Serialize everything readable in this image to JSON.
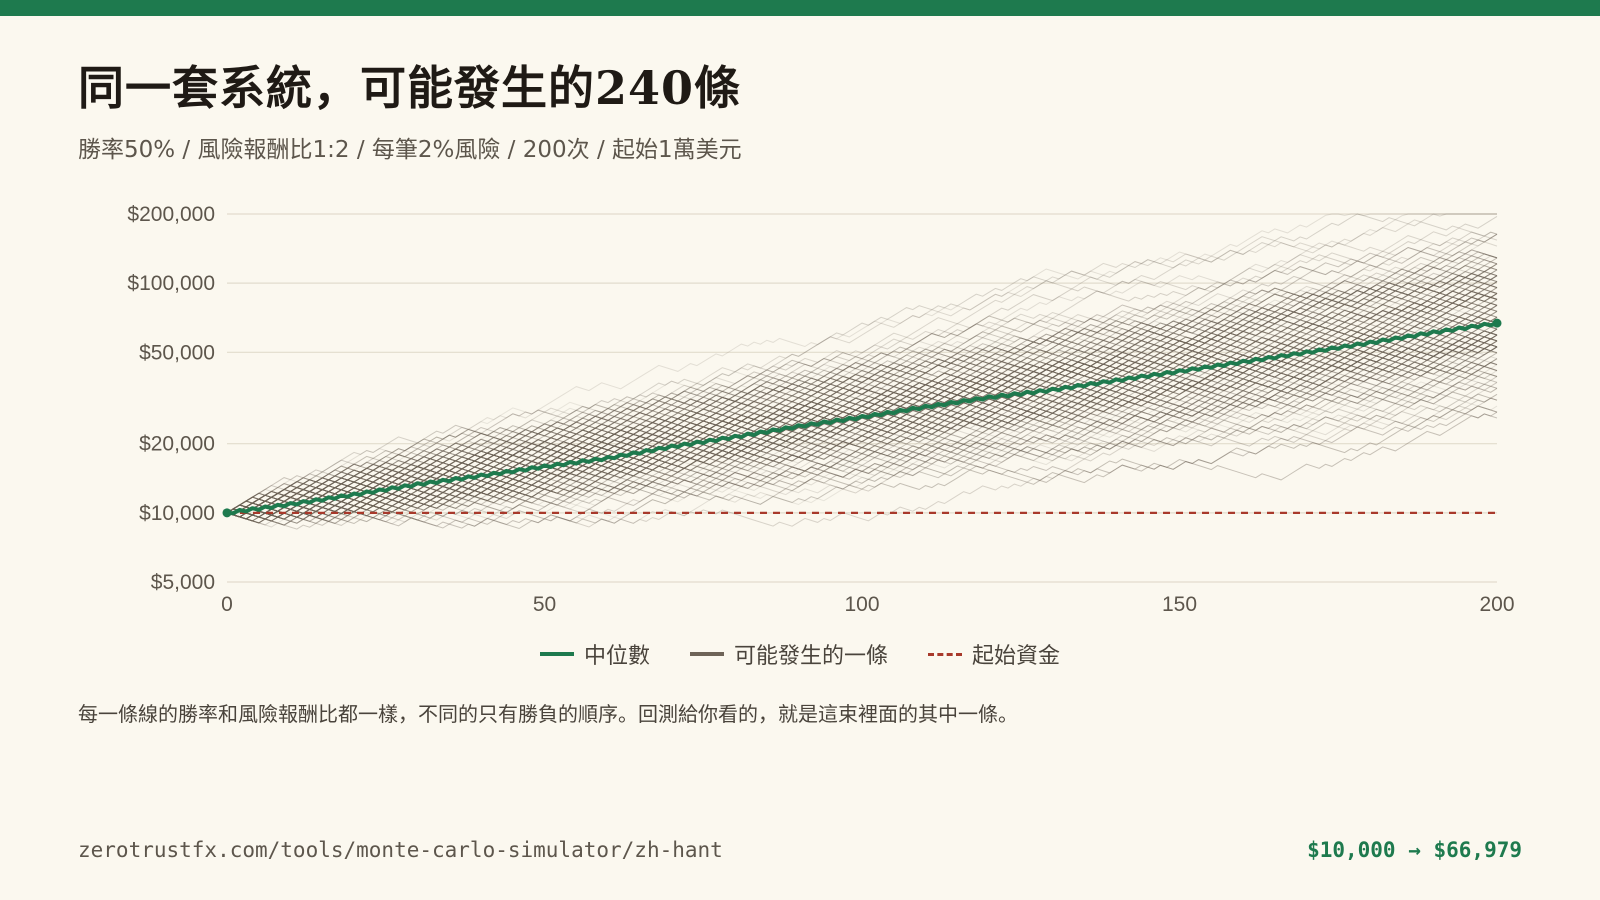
{
  "header": {
    "title": "同一套系統，可能發生的240條",
    "subtitle": "勝率50% / 風險報酬比1:2 / 每筆2%風險 / 200次 / 起始1萬美元"
  },
  "legend": {
    "median": "中位數",
    "path": "可能發生的一條",
    "start": "起始資金"
  },
  "note": "每一條線的勝率和風險報酬比都一樣，不同的只有勝負的順序。回測給你看的，就是這束裡面的其中一條。",
  "footer": {
    "url": "zerotrustfx.com/tools/monte-carlo-simulator/zh-hant",
    "result": "$10,000 → $66,979"
  },
  "colors": {
    "accent": "#1e7a4e",
    "path": "#6e6458",
    "start_line": "#a8392b",
    "background": "#fbf8ef"
  },
  "chart_data": {
    "type": "line",
    "y_scale": "log",
    "x_range": [
      0,
      200
    ],
    "y_range": [
      5000,
      200000
    ],
    "x_ticks": [
      0,
      50,
      100,
      150,
      200
    ],
    "x_tick_labels": [
      "0",
      "50",
      "100",
      "150",
      "200"
    ],
    "y_ticks": [
      5000,
      10000,
      20000,
      50000,
      100000,
      200000
    ],
    "y_tick_labels": [
      "$5,000",
      "$10,000",
      "$20,000",
      "$50,000",
      "$100,000",
      "$200,000"
    ],
    "grid": true,
    "starting_capital": 10000,
    "median_final": 66979,
    "path_count": 240,
    "trades": 200,
    "win_rate": 0.5,
    "risk_per_trade": 0.02,
    "reward_risk": 2,
    "median_series": [
      [
        0,
        10000
      ],
      [
        10,
        10900
      ],
      [
        20,
        12000
      ],
      [
        30,
        13300
      ],
      [
        40,
        14500
      ],
      [
        50,
        15900
      ],
      [
        60,
        17300
      ],
      [
        70,
        19400
      ],
      [
        80,
        21400
      ],
      [
        90,
        23800
      ],
      [
        100,
        26100
      ],
      [
        110,
        28900
      ],
      [
        120,
        31800
      ],
      [
        130,
        34300
      ],
      [
        140,
        37700
      ],
      [
        150,
        41300
      ],
      [
        160,
        45400
      ],
      [
        170,
        49900
      ],
      [
        180,
        55000
      ],
      [
        190,
        61000
      ],
      [
        200,
        66979
      ]
    ]
  }
}
